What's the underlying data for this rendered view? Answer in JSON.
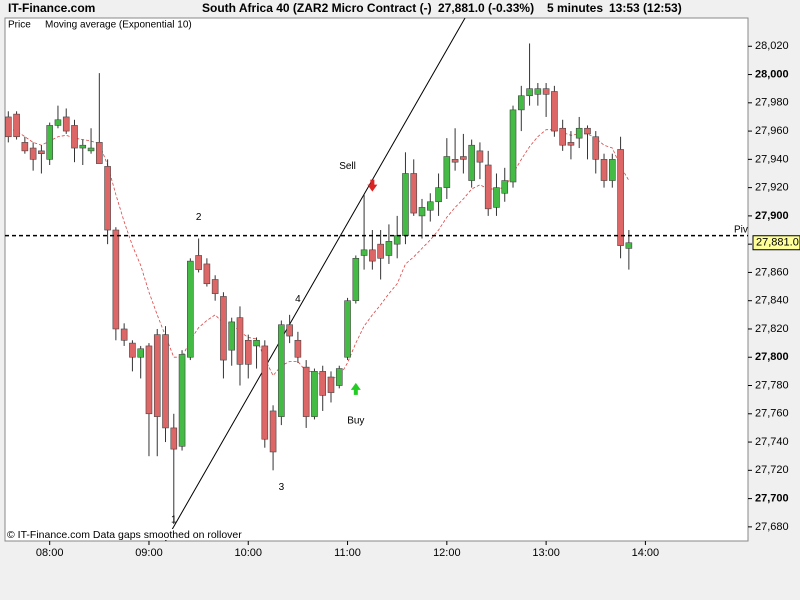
{
  "chart_data": {
    "type": "candlestick",
    "site": "IT-Finance.com",
    "title": "South Africa 40 (ZAR2 Micro Contract (-)",
    "price_text": "27,881.0 (-0.33%)",
    "interval": "5 minutes",
    "time_text": "13:53 (12:53)",
    "price_name": "Price",
    "footer": "© IT-Finance.com  Data gaps smoothed on rollover",
    "up_color": "#44bb44",
    "down_color": "#dd6666",
    "xlim": [
      "07:33",
      "15:02"
    ],
    "xticks": [
      "08:00",
      "09:00",
      "10:00",
      "11:00",
      "12:00",
      "13:00",
      "14:00"
    ],
    "ylim": [
      27670,
      28040
    ],
    "yticks": [
      {
        "value": 27680,
        "label": "27,680"
      },
      {
        "value": 27700,
        "label": "27,700"
      },
      {
        "value": 27720,
        "label": "27,720"
      },
      {
        "value": 27740,
        "label": "27,740"
      },
      {
        "value": 27760,
        "label": "27,760"
      },
      {
        "value": 27780,
        "label": "27,780"
      },
      {
        "value": 27800,
        "label": "27,800"
      },
      {
        "value": 27820,
        "label": "27,820"
      },
      {
        "value": 27840,
        "label": "27,840"
      },
      {
        "value": 27860,
        "label": "27,860"
      },
      {
        "value": 27880,
        "label": "27,880"
      },
      {
        "value": 27900,
        "label": "27,900"
      },
      {
        "value": 27920,
        "label": "27,920"
      },
      {
        "value": 27940,
        "label": "27,940"
      },
      {
        "value": 27960,
        "label": "27,960"
      },
      {
        "value": 27980,
        "label": "27,980"
      },
      {
        "value": 28000,
        "label": "28,000"
      },
      {
        "value": 28020,
        "label": "28,020"
      }
    ],
    "x": [
      "07:35",
      "07:40",
      "07:45",
      "07:50",
      "07:55",
      "08:00",
      "08:05",
      "08:10",
      "08:15",
      "08:20",
      "08:25",
      "08:30",
      "08:35",
      "08:40",
      "08:45",
      "08:50",
      "08:55",
      "09:00",
      "09:05",
      "09:10",
      "09:15",
      "09:20",
      "09:25",
      "09:30",
      "09:35",
      "09:40",
      "09:45",
      "09:50",
      "09:55",
      "10:00",
      "10:05",
      "10:10",
      "10:15",
      "10:20",
      "10:25",
      "10:30",
      "10:35",
      "10:40",
      "10:45",
      "10:50",
      "10:55",
      "11:00",
      "11:05",
      "11:10",
      "11:15",
      "11:20",
      "11:25",
      "11:30",
      "11:35",
      "11:40",
      "11:45",
      "11:50",
      "11:55",
      "12:00",
      "12:05",
      "12:10",
      "12:15",
      "12:20",
      "12:25",
      "12:30",
      "12:35",
      "12:40",
      "12:45",
      "12:50",
      "12:55",
      "13:00",
      "13:05",
      "13:10",
      "13:15",
      "13:20",
      "13:25",
      "13:30",
      "13:35",
      "13:40",
      "13:45",
      "13:50"
    ],
    "open": [
      27970,
      27972,
      27952,
      27948,
      27946,
      27940,
      27964,
      27970,
      27964,
      27948,
      27946,
      27952,
      27935,
      27890,
      27820,
      27810,
      27800,
      27808,
      27816,
      27816,
      27750,
      27737,
      27800,
      27872,
      27866,
      27855,
      27843,
      27805,
      27828,
      27812,
      27808,
      27808,
      27762,
      27758,
      27823,
      27812,
      27793,
      27758,
      27790,
      27786,
      27780,
      27800,
      27840,
      27872,
      27876,
      27880,
      27872,
      27880,
      27886,
      27930,
      27900,
      27904,
      27910,
      27920,
      27940,
      27942,
      27925,
      27946,
      27936,
      27906,
      27916,
      27924,
      27975,
      27985,
      27986,
      27990,
      27988,
      27962,
      27952,
      27955,
      27962,
      27956,
      27940,
      27925,
      27947,
      27877
    ],
    "high": [
      27974,
      27974,
      27956,
      27952,
      27950,
      27966,
      27978,
      27976,
      27968,
      27954,
      27962,
      28001,
      27940,
      27892,
      27824,
      27812,
      27808,
      27810,
      27820,
      27822,
      27760,
      27805,
      27870,
      27884,
      27870,
      27858,
      27846,
      27828,
      27836,
      27816,
      27814,
      27812,
      27766,
      27826,
      27830,
      27818,
      27798,
      27792,
      27794,
      27790,
      27794,
      27842,
      27872,
      27915,
      27890,
      27890,
      27894,
      27900,
      27945,
      27940,
      27912,
      27916,
      27930,
      27955,
      27962,
      27958,
      27954,
      27952,
      27946,
      27930,
      27934,
      27978,
      27992,
      28022,
      27994,
      27994,
      27992,
      27968,
      27960,
      27970,
      27964,
      27960,
      27944,
      27944,
      27956,
      27890
    ],
    "low": [
      27952,
      27954,
      27944,
      27932,
      27930,
      27936,
      27962,
      27958,
      27938,
      27936,
      27944,
      27940,
      27880,
      27812,
      27808,
      27790,
      27785,
      27730,
      27730,
      27740,
      27682,
      27734,
      27798,
      27860,
      27850,
      27840,
      27785,
      27794,
      27780,
      27785,
      27792,
      27736,
      27720,
      27752,
      27810,
      27796,
      27750,
      27756,
      27762,
      27768,
      27778,
      27798,
      27838,
      27862,
      27862,
      27855,
      27866,
      27870,
      27880,
      27900,
      27884,
      27896,
      27900,
      27912,
      27932,
      27930,
      27920,
      27926,
      27900,
      27900,
      27910,
      27920,
      27960,
      27978,
      27978,
      27970,
      27956,
      27946,
      27940,
      27948,
      27940,
      27930,
      27920,
      27920,
      27870,
      27862
    ],
    "close": [
      27956,
      27956,
      27946,
      27940,
      27944,
      27964,
      27968,
      27960,
      27948,
      27950,
      27948,
      27937,
      27890,
      27820,
      27812,
      27800,
      27806,
      27760,
      27758,
      27750,
      27735,
      27802,
      27868,
      27862,
      27852,
      27845,
      27798,
      27825,
      27795,
      27795,
      27812,
      27742,
      27733,
      27823,
      27815,
      27800,
      27758,
      27790,
      27773,
      27775,
      27792,
      27840,
      27870,
      27876,
      27868,
      27870,
      27882,
      27886,
      27930,
      27902,
      27906,
      27910,
      27920,
      27942,
      27938,
      27940,
      27950,
      27938,
      27905,
      27920,
      27925,
      27975,
      27985,
      27990,
      27990,
      27986,
      27960,
      27950,
      27950,
      27962,
      27958,
      27940,
      27925,
      27940,
      27879,
      27881
    ],
    "moving_average": {
      "name": "Moving average (Exponential 10)",
      "color": "#dd4444",
      "values": [
        27962,
        27960,
        27956,
        27952,
        27950,
        27953,
        27956,
        27957,
        27955,
        27954,
        27953,
        27951,
        27936,
        27915,
        27896,
        27879,
        27865,
        27846,
        27830,
        27815,
        27800,
        27800,
        27812,
        27821,
        27826,
        27830,
        27824,
        27824,
        27818,
        27814,
        27813,
        27799,
        27787,
        27794,
        27797,
        27797,
        27790,
        27790,
        27787,
        27785,
        27786,
        27796,
        27810,
        27822,
        27830,
        27837,
        27845,
        27852,
        27866,
        27871,
        27877,
        27883,
        27890,
        27899,
        27906,
        27912,
        27919,
        27922,
        27919,
        27919,
        27920,
        27930,
        27940,
        27949,
        27956,
        27961,
        27961,
        27959,
        27957,
        27958,
        27958,
        27955,
        27950,
        27948,
        27935,
        27925
      ]
    },
    "trend_line": {
      "x": [
        "09:10",
        "12:11"
      ],
      "values": [
        27670,
        28040
      ]
    },
    "pivot": {
      "label": "Piv",
      "value": 27886
    },
    "last_price": {
      "label": "27,881.0",
      "value": 27881
    },
    "annotations": [
      {
        "text": "1",
        "x": "09:15",
        "y": 27685
      },
      {
        "text": "2",
        "x": "09:30",
        "y": 27899
      },
      {
        "text": "3",
        "x": "10:20",
        "y": 27708
      },
      {
        "text": "4",
        "x": "10:30",
        "y": 27841
      },
      {
        "text": "Sell",
        "x": "11:00",
        "y": 27935
      },
      {
        "text": "Buy",
        "x": "11:05",
        "y": 27755
      }
    ],
    "arrows": [
      {
        "direction": "down",
        "x": "11:15",
        "y": 27920,
        "color": "#dd2222"
      },
      {
        "direction": "up",
        "x": "11:05",
        "y": 27779,
        "color": "#22cc22"
      }
    ]
  }
}
